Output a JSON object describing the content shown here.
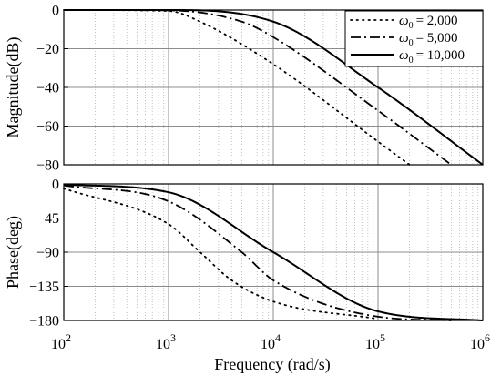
{
  "chart_data": [
    {
      "type": "line",
      "xscale": "log",
      "xlim": [
        100,
        1000000
      ],
      "ylim": [
        -80,
        0
      ],
      "ylabel": "Magnitude(dB)",
      "yticks": [
        "0",
        "−20",
        "−40",
        "−60",
        "−80"
      ],
      "grid": true,
      "legend_position": "top-right",
      "series": [
        {
          "name": "ω0 = 2,000",
          "legend_text": "= 2,000",
          "style": "dotted",
          "x": [
            100,
            1000,
            2000,
            10000,
            100000,
            200000
          ],
          "values": [
            0,
            -0.5,
            -6,
            -28,
            -68,
            -80
          ]
        },
        {
          "name": "ω0 = 5,000",
          "legend_text": "= 5,000",
          "style": "dashdot",
          "x": [
            100,
            1000,
            5000,
            10000,
            100000,
            500000
          ],
          "values": [
            0,
            -0.2,
            -6,
            -14,
            -52,
            -80
          ]
        },
        {
          "name": "ω0 = 10,000",
          "legend_text": "= 10,000",
          "style": "solid",
          "x": [
            100,
            1000,
            10000,
            100000,
            1000000
          ],
          "values": [
            0,
            0,
            -6,
            -40,
            -80
          ]
        }
      ]
    },
    {
      "type": "line",
      "xscale": "log",
      "xlim": [
        100,
        1000000
      ],
      "ylim": [
        -180,
        0
      ],
      "xlabel": "Frequency (rad/s)",
      "ylabel": "Phase(deg)",
      "yticks": [
        "0",
        "−45",
        "−90",
        "−135",
        "−180"
      ],
      "xticks": [
        {
          "base": "10",
          "exp": "2"
        },
        {
          "base": "10",
          "exp": "3"
        },
        {
          "base": "10",
          "exp": "4"
        },
        {
          "base": "10",
          "exp": "5"
        },
        {
          "base": "10",
          "exp": "6"
        }
      ],
      "grid": true,
      "series": [
        {
          "name": "ω0 = 2,000",
          "style": "dotted",
          "x": [
            100,
            1000,
            2000,
            4000,
            10000,
            100000
          ],
          "values": [
            -6,
            -53,
            -90,
            -127,
            -155,
            -178
          ]
        },
        {
          "name": "ω0 = 5,000",
          "style": "dashdot",
          "x": [
            100,
            1000,
            5000,
            10000,
            100000,
            500000
          ],
          "values": [
            -2,
            -23,
            -90,
            -127,
            -175,
            -180
          ]
        },
        {
          "name": "ω0 = 10,000",
          "style": "solid",
          "x": [
            100,
            1000,
            10000,
            100000,
            1000000
          ],
          "values": [
            -1,
            -11,
            -90,
            -168,
            -180
          ]
        }
      ]
    }
  ],
  "legend_symbol": "ω",
  "legend_subscript": "0"
}
